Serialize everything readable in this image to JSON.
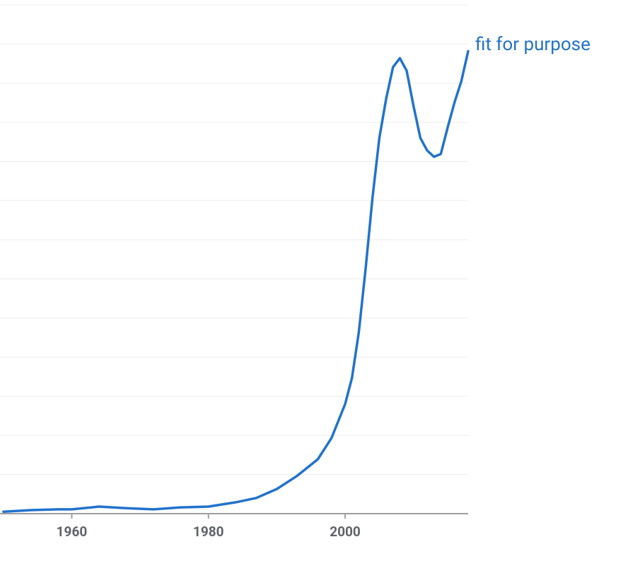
{
  "chart_data": {
    "type": "line",
    "x": [
      1950,
      1954,
      1958,
      1960,
      1964,
      1968,
      1972,
      1976,
      1980,
      1984,
      1987,
      1990,
      1993,
      1996,
      1998,
      2000,
      2001,
      2002,
      2003,
      2004,
      2005,
      2006,
      2007,
      2008,
      2009,
      2010,
      2011,
      2012,
      2013,
      2014,
      2015,
      2016,
      2017,
      2018
    ],
    "series": [
      {
        "name": "fit for purpose",
        "color": "#2272cc",
        "values": [
          0.05,
          0.09,
          0.11,
          0.11,
          0.18,
          0.14,
          0.11,
          0.16,
          0.18,
          0.29,
          0.4,
          0.63,
          0.97,
          1.39,
          1.93,
          2.8,
          3.47,
          4.64,
          6.26,
          8.07,
          9.6,
          10.6,
          11.41,
          11.64,
          11.32,
          10.42,
          9.6,
          9.28,
          9.12,
          9.19,
          9.87,
          10.51,
          11.05,
          11.82
        ]
      }
    ],
    "xlim": [
      1949.5,
      2018
    ],
    "xticks": [
      1960,
      1980,
      2000
    ],
    "ylim": [
      0,
      13
    ],
    "yticks": [
      0,
      1,
      2,
      3,
      4,
      5,
      6,
      7,
      8,
      9,
      10,
      11,
      12,
      13
    ],
    "ytick_labels": false,
    "grid": true
  }
}
